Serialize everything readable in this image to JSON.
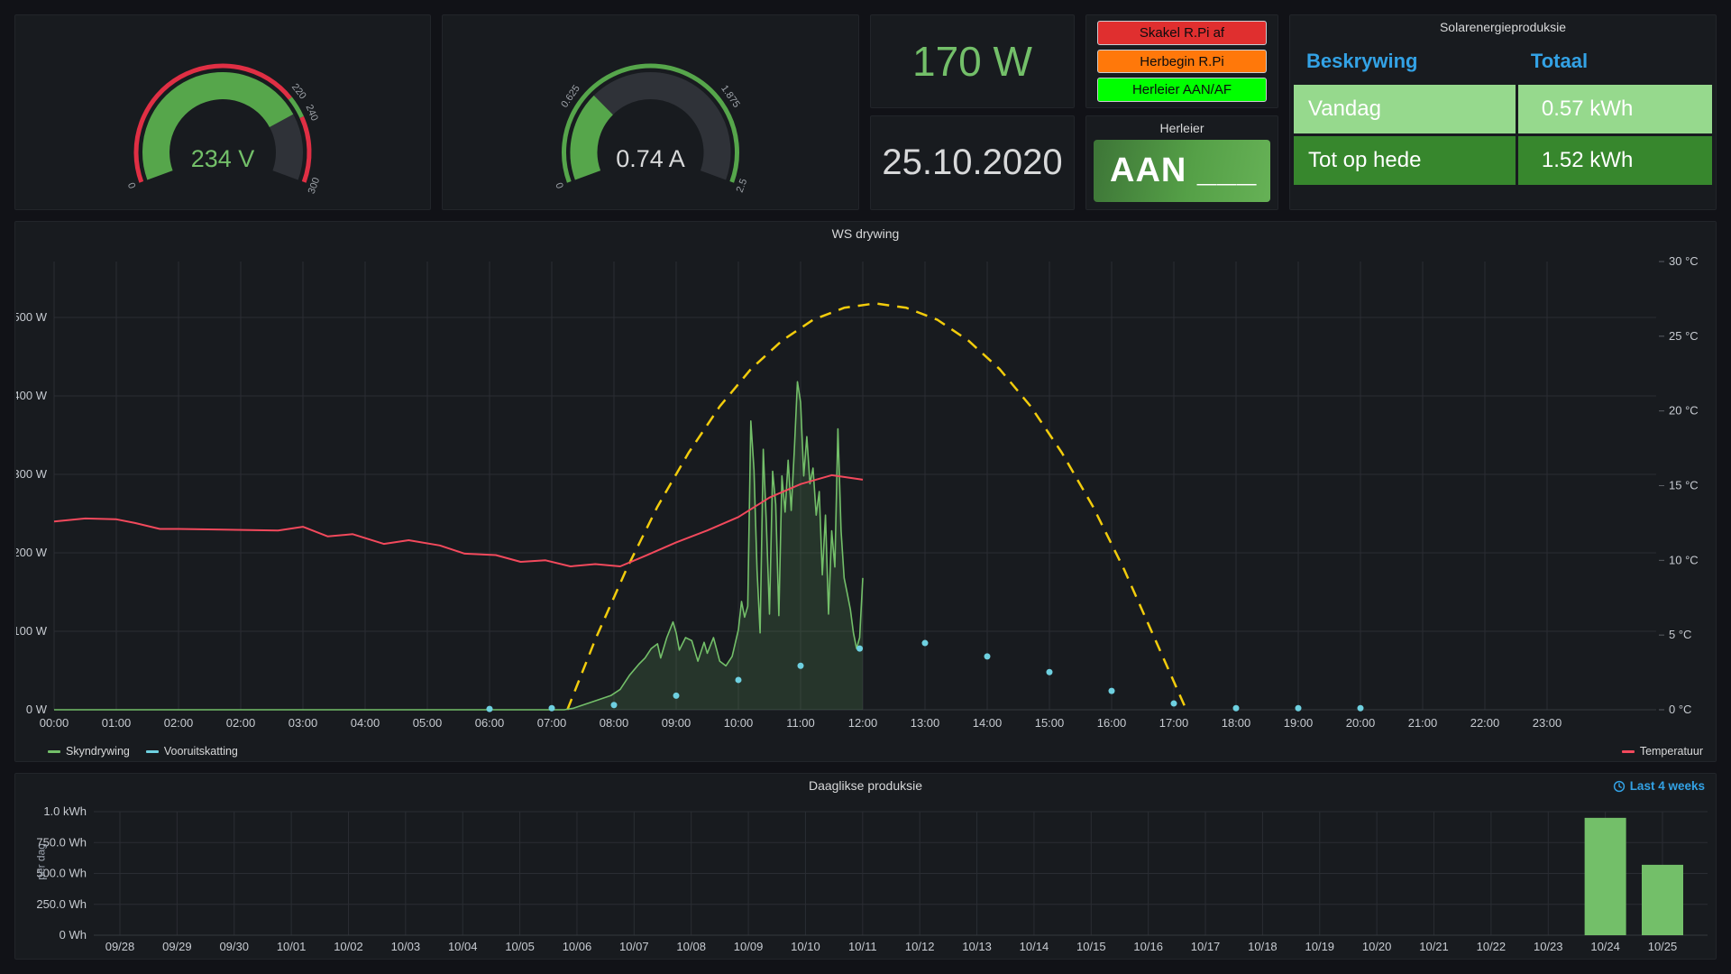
{
  "panels": {
    "voltage_gauge": {
      "value_text": "234 V",
      "value": 234,
      "min": 0,
      "max": 300,
      "value_color": "#73BF69",
      "fill_color": "#56A64B",
      "track_color": "#2F3238",
      "tick_color": "#9DA2A8",
      "ring": [
        {
          "from": 0,
          "to": 0.7333,
          "color": "#E02F44"
        },
        {
          "from": 0.7333,
          "to": 0.8,
          "color": "#56A64B"
        },
        {
          "from": 0.8,
          "to": 1,
          "color": "#E02F44"
        }
      ],
      "ticks": [
        {
          "frac": 0,
          "label": "0"
        },
        {
          "frac": 0.7333,
          "label": "220"
        },
        {
          "frac": 0.8,
          "label": "240"
        },
        {
          "frac": 1,
          "label": "300"
        }
      ]
    },
    "current_gauge": {
      "value_text": "0.74 A",
      "value": 0.74,
      "min": 0,
      "max": 2.5,
      "value_color": "#D8D9DA",
      "fill_color": "#56A64B",
      "track_color": "#2F3238",
      "tick_color": "#9DA2A8",
      "ring": [
        {
          "from": 0,
          "to": 1,
          "color": "#56A64B"
        }
      ],
      "ticks": [
        {
          "frac": 0,
          "label": "0"
        },
        {
          "frac": 0.25,
          "label": "0.625"
        },
        {
          "frac": 0.75,
          "label": "1.875"
        },
        {
          "frac": 1,
          "label": "2.5"
        }
      ]
    },
    "power_stat": {
      "value": "170 W",
      "color": "#73BF69"
    },
    "date_stat": {
      "value": "25.10.2020",
      "color": "#D8D9DA"
    },
    "buttons": {
      "text_color": "#0B0C0E",
      "items": [
        {
          "label": "Skakel R.Pi af",
          "color": "#E02F2F"
        },
        {
          "label": "Herbegin R.Pi",
          "color": "#FF780A"
        },
        {
          "label": "Herleier AAN/AF",
          "color": "#00FF00"
        }
      ]
    },
    "herleier": {
      "title": "Herleier",
      "value": "AAN ___",
      "gradient": [
        "#3D7537",
        "#55A047",
        "#66B156"
      ]
    },
    "table": {
      "title": "Solarenergieproduksie",
      "header_color": "#33A2E5",
      "headers": [
        "Beskrywing",
        "Totaal"
      ],
      "rows": [
        {
          "beskrywing": "Vandag",
          "totaal": "0.57 kWh",
          "bg": "#96D98D"
        },
        {
          "beskrywing": "Tot op hede",
          "totaal": "1.52 kWh",
          "bg": "#37872D"
        }
      ]
    }
  },
  "chart_data": [
    {
      "type": "line",
      "title": "WS drywing",
      "x_unit": "time-of-day",
      "dst_note": "02:00 tick appears twice (DST fall-back on 25.10.2020)",
      "x_ticks": [
        "00:00",
        "01:00",
        "02:00",
        "02:00",
        "03:00",
        "04:00",
        "05:00",
        "06:00",
        "07:00",
        "08:00",
        "09:00",
        "10:00",
        "11:00",
        "12:00",
        "13:00",
        "14:00",
        "15:00",
        "16:00",
        "17:00",
        "18:00",
        "19:00",
        "20:00",
        "21:00",
        "22:00",
        "23:00"
      ],
      "y_left": {
        "unit": "W",
        "ticks": [
          0,
          100,
          200,
          300,
          400,
          500
        ],
        "tick_labels": [
          "0 W",
          "100 W",
          "200 W",
          "300 W",
          "400 W",
          "500 W"
        ]
      },
      "y_right": {
        "unit": "°C",
        "ticks": [
          0,
          5,
          10,
          15,
          20,
          25,
          30
        ],
        "tick_labels": [
          "0 °C",
          "5 °C",
          "10 °C",
          "15 °C",
          "20 °C",
          "25 °C",
          "30 °C"
        ]
      },
      "series": [
        {
          "id": "forecast-curve",
          "axis": "right",
          "style": "dashed",
          "color": "#F2CC0C",
          "points": [
            [
              7.25,
              0
            ],
            [
              7.7,
              4.7
            ],
            [
              8.2,
              9.4
            ],
            [
              8.7,
              13.6
            ],
            [
              9.2,
              17.2
            ],
            [
              9.7,
              20.3
            ],
            [
              10.2,
              22.8
            ],
            [
              10.7,
              24.7
            ],
            [
              11.2,
              26.1
            ],
            [
              11.7,
              26.9
            ],
            [
              12.2,
              27.2
            ],
            [
              12.7,
              26.9
            ],
            [
              13.2,
              26.1
            ],
            [
              13.7,
              24.7
            ],
            [
              14.2,
              22.8
            ],
            [
              14.7,
              20.3
            ],
            [
              15.2,
              17.2
            ],
            [
              15.7,
              13.6
            ],
            [
              16.2,
              9.4
            ],
            [
              16.7,
              4.7
            ],
            [
              17.2,
              0
            ]
          ]
        },
        {
          "id": "skyndrywing",
          "name": "Skyndrywing",
          "legend_side": "left",
          "axis": "left",
          "style": "area",
          "color": "#73BF69",
          "fill": "rgba(115,191,105,0.16)",
          "points": [
            [
              0,
              0
            ],
            [
              7.2,
              0
            ],
            [
              7.35,
              2
            ],
            [
              7.5,
              6
            ],
            [
              7.65,
              10
            ],
            [
              7.8,
              14
            ],
            [
              7.95,
              18
            ],
            [
              8.1,
              26
            ],
            [
              8.25,
              44
            ],
            [
              8.4,
              58
            ],
            [
              8.5,
              66
            ],
            [
              8.6,
              78
            ],
            [
              8.7,
              84
            ],
            [
              8.75,
              66
            ],
            [
              8.85,
              92
            ],
            [
              8.95,
              112
            ],
            [
              9.0,
              98
            ],
            [
              9.05,
              76
            ],
            [
              9.15,
              92
            ],
            [
              9.25,
              88
            ],
            [
              9.35,
              62
            ],
            [
              9.45,
              86
            ],
            [
              9.5,
              72
            ],
            [
              9.6,
              92
            ],
            [
              9.7,
              62
            ],
            [
              9.8,
              56
            ],
            [
              9.9,
              68
            ],
            [
              10.0,
              102
            ],
            [
              10.05,
              138
            ],
            [
              10.1,
              118
            ],
            [
              10.15,
              132
            ],
            [
              10.2,
              368
            ],
            [
              10.25,
              306
            ],
            [
              10.3,
              178
            ],
            [
              10.35,
              98
            ],
            [
              10.4,
              332
            ],
            [
              10.45,
              238
            ],
            [
              10.5,
              122
            ],
            [
              10.55,
              304
            ],
            [
              10.6,
              262
            ],
            [
              10.65,
              120
            ],
            [
              10.7,
              298
            ],
            [
              10.75,
              252
            ],
            [
              10.8,
              318
            ],
            [
              10.85,
              254
            ],
            [
              10.9,
              332
            ],
            [
              10.95,
              418
            ],
            [
              11.0,
              392
            ],
            [
              11.05,
              298
            ],
            [
              11.1,
              348
            ],
            [
              11.15,
              288
            ],
            [
              11.2,
              308
            ],
            [
              11.25,
              248
            ],
            [
              11.3,
              278
            ],
            [
              11.35,
              172
            ],
            [
              11.4,
              248
            ],
            [
              11.45,
              122
            ],
            [
              11.5,
              228
            ],
            [
              11.55,
              182
            ],
            [
              11.6,
              358
            ],
            [
              11.65,
              228
            ],
            [
              11.7,
              168
            ],
            [
              11.75,
              148
            ],
            [
              11.8,
              128
            ],
            [
              11.85,
              98
            ],
            [
              11.9,
              78
            ],
            [
              11.95,
              92
            ],
            [
              12.0,
              168
            ]
          ]
        },
        {
          "id": "temperatuur",
          "name": "Temperatuur",
          "legend_side": "right",
          "axis": "right",
          "style": "line",
          "color": "#F2495C",
          "points": [
            [
              0,
              12.6
            ],
            [
              0.5,
              12.8
            ],
            [
              1,
              12.75
            ],
            [
              1.3,
              12.5
            ],
            [
              1.7,
              12.1
            ],
            [
              2,
              12.1
            ],
            [
              2.6,
              12.0
            ],
            [
              3,
              12.25
            ],
            [
              3.4,
              11.6
            ],
            [
              3.8,
              11.75
            ],
            [
              4.3,
              11.1
            ],
            [
              4.7,
              11.35
            ],
            [
              5.2,
              11.0
            ],
            [
              5.6,
              10.45
            ],
            [
              6.1,
              10.35
            ],
            [
              6.5,
              9.9
            ],
            [
              6.9,
              10.0
            ],
            [
              7.3,
              9.6
            ],
            [
              7.7,
              9.75
            ],
            [
              8.1,
              9.6
            ],
            [
              8.5,
              10.3
            ],
            [
              9,
              11.2
            ],
            [
              9.5,
              12.0
            ],
            [
              10,
              12.9
            ],
            [
              10.5,
              14.2
            ],
            [
              11,
              15.1
            ],
            [
              11.5,
              15.7
            ],
            [
              12,
              15.4
            ]
          ]
        },
        {
          "id": "vooruitskatting",
          "name": "Vooruitskatting",
          "legend_side": "left",
          "axis": "left",
          "style": "points",
          "color": "#6ED0E0",
          "points": [
            [
              6,
              1
            ],
            [
              7,
              2
            ],
            [
              8,
              6
            ],
            [
              9,
              18
            ],
            [
              10,
              38
            ],
            [
              11,
              56
            ],
            [
              11.95,
              78
            ],
            [
              13,
              85
            ],
            [
              14,
              68
            ],
            [
              15,
              48
            ],
            [
              16,
              24
            ],
            [
              17,
              8
            ],
            [
              18,
              2
            ],
            [
              19,
              2
            ],
            [
              20,
              2
            ]
          ]
        }
      ]
    },
    {
      "type": "bar",
      "title": "Daaglikse produksie",
      "time_range_label": "Last 4 weeks",
      "time_range_color": "#33A2E5",
      "ylabel": "per dag",
      "bar_color": "#73BF69",
      "y_axis": {
        "ticks_wh": [
          0,
          250,
          500,
          750,
          1000
        ],
        "tick_labels": [
          "0 Wh",
          "250.0 Wh",
          "500.0 Wh",
          "750.0 Wh",
          "1.0 kWh"
        ]
      },
      "categories": [
        "09/28",
        "09/29",
        "09/30",
        "10/01",
        "10/02",
        "10/03",
        "10/04",
        "10/05",
        "10/06",
        "10/07",
        "10/08",
        "10/09",
        "10/10",
        "10/11",
        "10/12",
        "10/13",
        "10/14",
        "10/15",
        "10/16",
        "10/17",
        "10/18",
        "10/19",
        "10/20",
        "10/21",
        "10/22",
        "10/23",
        "10/24",
        "10/25"
      ],
      "values_wh": [
        0,
        0,
        0,
        0,
        0,
        0,
        0,
        0,
        0,
        0,
        0,
        0,
        0,
        0,
        0,
        0,
        0,
        0,
        0,
        0,
        0,
        0,
        0,
        0,
        0,
        0,
        950,
        570
      ]
    }
  ]
}
